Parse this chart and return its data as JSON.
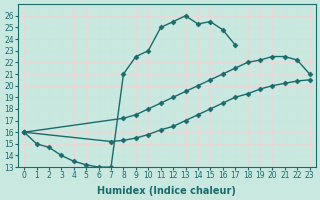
{
  "xlabel": "Humidex (Indice chaleur)",
  "xlim": [
    -0.5,
    23.5
  ],
  "ylim": [
    13,
    27
  ],
  "xticks": [
    0,
    1,
    2,
    3,
    4,
    5,
    6,
    7,
    8,
    9,
    10,
    11,
    12,
    13,
    14,
    15,
    16,
    17,
    18,
    19,
    20,
    21,
    22,
    23
  ],
  "yticks": [
    13,
    14,
    15,
    16,
    17,
    18,
    19,
    20,
    21,
    22,
    23,
    24,
    25,
    26
  ],
  "bg_color": "#c8e8e0",
  "grid_color": "#e8d8d8",
  "line_color": "#1a6b6b",
  "curve1_x": [
    0,
    1,
    2,
    3,
    4,
    5,
    6,
    7,
    8,
    9,
    10,
    11,
    12,
    13,
    14,
    15,
    16,
    17
  ],
  "curve1_y": [
    16.0,
    15.0,
    14.7,
    14.0,
    13.5,
    13.2,
    13.0,
    13.0,
    21.0,
    22.5,
    23.0,
    25.0,
    25.5,
    26.0,
    25.3,
    25.5,
    24.8,
    23.5
  ],
  "curve2_x": [
    0,
    8,
    9,
    10,
    11,
    12,
    13,
    14,
    15,
    16,
    17,
    18,
    19,
    20,
    21,
    22,
    23
  ],
  "curve2_y": [
    16.0,
    17.2,
    17.5,
    18.0,
    18.5,
    19.0,
    19.5,
    20.0,
    20.5,
    21.0,
    21.5,
    22.0,
    22.2,
    22.5,
    22.5,
    22.2,
    21.0
  ],
  "curve3_x": [
    0,
    7,
    8,
    9,
    10,
    11,
    12,
    13,
    14,
    15,
    16,
    17,
    18,
    19,
    20,
    21,
    22,
    23
  ],
  "curve3_y": [
    16.0,
    15.2,
    15.3,
    15.5,
    15.8,
    16.2,
    16.5,
    17.0,
    17.5,
    18.0,
    18.5,
    19.0,
    19.3,
    19.7,
    20.0,
    20.2,
    20.4,
    20.5
  ],
  "marker": "D",
  "markersize": 2.5,
  "linewidth": 1.0,
  "tick_fontsize": 5.5,
  "xlabel_fontsize": 7
}
